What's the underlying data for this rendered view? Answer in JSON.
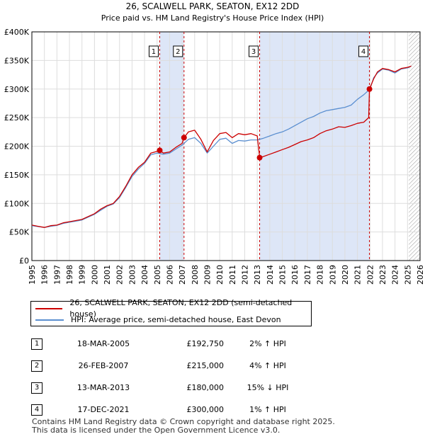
{
  "chart_data": {
    "type": "line",
    "title": "26, SCALWELL PARK, SEATON, EX12 2DD",
    "subtitle": "Price paid vs. HM Land Registry's House Price Index (HPI)",
    "xlabel": "",
    "ylabel": "",
    "xlim": [
      1995,
      2026
    ],
    "ylim": [
      0,
      400000
    ],
    "x_ticks": [
      "1995",
      "1996",
      "1997",
      "1998",
      "1999",
      "2000",
      "2001",
      "2002",
      "2003",
      "2004",
      "2005",
      "2006",
      "2007",
      "2008",
      "2009",
      "2010",
      "2011",
      "2012",
      "2013",
      "2014",
      "2015",
      "2016",
      "2017",
      "2018",
      "2019",
      "2020",
      "2021",
      "2022",
      "2023",
      "2024",
      "2025",
      "2026"
    ],
    "y_ticks": [
      {
        "value": 0,
        "label": "£0"
      },
      {
        "value": 50000,
        "label": "£50K"
      },
      {
        "value": 100000,
        "label": "£100K"
      },
      {
        "value": 150000,
        "label": "£150K"
      },
      {
        "value": 200000,
        "label": "£200K"
      },
      {
        "value": 250000,
        "label": "£250K"
      },
      {
        "value": 300000,
        "label": "£300K"
      },
      {
        "value": 350000,
        "label": "£350K"
      },
      {
        "value": 400000,
        "label": "£400K"
      }
    ],
    "grid": true,
    "series": [
      {
        "name": "26, SCALWELL PARK, SEATON, EX12 2DD (semi-detached house)",
        "color": "#cc0000",
        "x": [
          1995.0,
          1995.5,
          1996.0,
          1996.5,
          1997.0,
          1997.5,
          1998.0,
          1998.5,
          1999.0,
          1999.5,
          2000.0,
          2000.5,
          2001.0,
          2001.5,
          2002.0,
          2002.5,
          2003.0,
          2003.5,
          2004.0,
          2004.5,
          2005.0,
          2005.21,
          2005.5,
          2006.0,
          2006.5,
          2007.0,
          2007.15,
          2007.5,
          2008.0,
          2008.5,
          2009.0,
          2009.5,
          2010.0,
          2010.5,
          2011.0,
          2011.5,
          2012.0,
          2012.5,
          2013.0,
          2013.19,
          2013.5,
          2014.0,
          2014.5,
          2015.0,
          2015.5,
          2016.0,
          2016.5,
          2017.0,
          2017.5,
          2018.0,
          2018.5,
          2019.0,
          2019.5,
          2020.0,
          2020.5,
          2021.0,
          2021.5,
          2021.9,
          2021.96,
          2022.3,
          2022.6,
          2023.0,
          2023.5,
          2024.0,
          2024.5,
          2025.0,
          2025.3
        ],
        "y": [
          62000,
          60000,
          58000,
          61000,
          62000,
          66000,
          68000,
          70000,
          72000,
          77000,
          82000,
          90000,
          96000,
          100000,
          112000,
          130000,
          150000,
          163000,
          172000,
          188000,
          191000,
          192750,
          188000,
          190000,
          198000,
          205000,
          215000,
          225000,
          228000,
          212000,
          190000,
          210000,
          222000,
          224000,
          215000,
          222000,
          220000,
          222000,
          218000,
          180000,
          182000,
          186000,
          190000,
          194000,
          198000,
          203000,
          208000,
          211000,
          215000,
          222000,
          227000,
          230000,
          234000,
          233000,
          236000,
          240000,
          242000,
          250000,
          300000,
          318000,
          330000,
          336000,
          334000,
          330000,
          336000,
          338000,
          340000
        ]
      },
      {
        "name": "HPI: Average price, semi-detached house, East Devon",
        "color": "#5b8fd0",
        "x": [
          1995.0,
          1995.5,
          1996.0,
          1996.5,
          1997.0,
          1997.5,
          1998.0,
          1998.5,
          1999.0,
          1999.5,
          2000.0,
          2000.5,
          2001.0,
          2001.5,
          2002.0,
          2002.5,
          2003.0,
          2003.5,
          2004.0,
          2004.5,
          2005.0,
          2005.5,
          2006.0,
          2006.5,
          2007.0,
          2007.5,
          2008.0,
          2008.5,
          2009.0,
          2009.5,
          2010.0,
          2010.5,
          2011.0,
          2011.5,
          2012.0,
          2012.5,
          2013.0,
          2013.5,
          2014.0,
          2014.5,
          2015.0,
          2015.5,
          2016.0,
          2016.5,
          2017.0,
          2017.5,
          2018.0,
          2018.5,
          2019.0,
          2019.5,
          2020.0,
          2020.5,
          2021.0,
          2021.5,
          2022.0,
          2022.3,
          2022.6,
          2023.0,
          2023.5,
          2024.0,
          2024.5,
          2025.0,
          2025.3
        ],
        "y": [
          61000,
          59500,
          58000,
          60000,
          61500,
          65000,
          67000,
          69000,
          71000,
          76000,
          81000,
          88000,
          95000,
          99000,
          110000,
          128000,
          147000,
          160000,
          170000,
          185000,
          188000,
          186000,
          188000,
          195000,
          202000,
          212000,
          215000,
          205000,
          188000,
          200000,
          212000,
          214000,
          205000,
          210000,
          209000,
          211000,
          211000,
          214000,
          218000,
          222000,
          225000,
          230000,
          236000,
          242000,
          248000,
          252000,
          258000,
          262000,
          264000,
          266000,
          268000,
          272000,
          282000,
          290000,
          300000,
          320000,
          328000,
          335000,
          333000,
          328000,
          335000,
          337000,
          340000
        ]
      }
    ],
    "markers": [
      {
        "label": "1",
        "x": 2005.21,
        "y": 192750
      },
      {
        "label": "2",
        "x": 2007.15,
        "y": 215000
      },
      {
        "label": "3",
        "x": 2013.19,
        "y": 180000
      },
      {
        "label": "4",
        "x": 2021.96,
        "y": 300000
      }
    ],
    "shaded_spans": [
      [
        2005.21,
        2007.15
      ],
      [
        2013.19,
        2021.96
      ]
    ],
    "hatched_from": 2025.1
  },
  "legend": {
    "property": "26, SCALWELL PARK, SEATON, EX12 2DD (semi-detached house)",
    "hpi": "HPI: Average price, semi-detached house, East Devon"
  },
  "transactions": [
    {
      "num": "1",
      "date": "18-MAR-2005",
      "price": "£192,750",
      "hpi": "2% ↑ HPI"
    },
    {
      "num": "2",
      "date": "26-FEB-2007",
      "price": "£215,000",
      "hpi": "4% ↑ HPI"
    },
    {
      "num": "3",
      "date": "13-MAR-2013",
      "price": "£180,000",
      "hpi": "15% ↓ HPI"
    },
    {
      "num": "4",
      "date": "17-DEC-2021",
      "price": "£300,000",
      "hpi": "1% ↑ HPI"
    }
  ],
  "footer": {
    "line1": "Contains HM Land Registry data © Crown copyright and database right 2025.",
    "line2": "This data is licensed under the Open Government Licence v3.0."
  },
  "colors": {
    "property": "#cc0000",
    "hpi": "#5b8fd0",
    "shade": "#dde6f7",
    "grid": "#dddddd"
  }
}
